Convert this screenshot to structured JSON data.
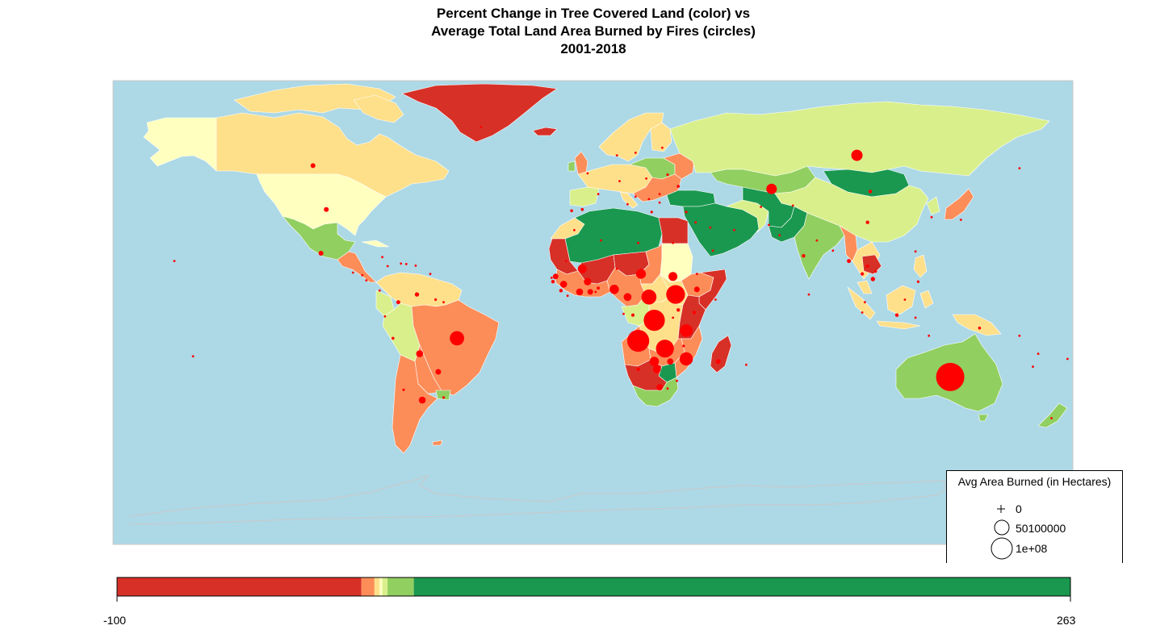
{
  "title": {
    "line1": "Percent Change in Tree Covered Land (color) vs",
    "line2": "Average Total Land Area Burned by Fires (circles)",
    "line3": "2001-2018"
  },
  "colors": {
    "ocean": "#add8e6",
    "dark_red": "#d73027",
    "orange": "#fc8d59",
    "light_orange": "#fee08b",
    "pale_yellow": "#ffffbf",
    "yellow_green": "#d9ef8b",
    "light_green": "#91cf60",
    "dark_green": "#1a9850",
    "fire": "#ff0000"
  },
  "legend": {
    "title": "Avg Area Burned (in Hectares)",
    "items": [
      {
        "label": "0",
        "symbol": "plus"
      },
      {
        "label": "50100000",
        "symbol": "circle-small"
      },
      {
        "label": "1e+08",
        "symbol": "circle-large"
      }
    ]
  },
  "color_scale": {
    "min_label": "-100",
    "max_label": "263",
    "min": -100,
    "max": 263,
    "segments": [
      {
        "from": -100,
        "to": -7,
        "color": "#d73027"
      },
      {
        "from": -7,
        "to": -2,
        "color": "#fc8d59"
      },
      {
        "from": -2,
        "to": 0,
        "color": "#fee08b"
      },
      {
        "from": 0,
        "to": 1,
        "color": "#ffffbf"
      },
      {
        "from": 1,
        "to": 3,
        "color": "#d9ef8b"
      },
      {
        "from": 3,
        "to": 13,
        "color": "#91cf60"
      },
      {
        "from": 13,
        "to": 263,
        "color": "#1a9850"
      }
    ]
  },
  "fires": [
    {
      "region": "Australia",
      "lon": 134,
      "lat": -25,
      "hectares": 50000000
    },
    {
      "region": "Central Africa west",
      "lon": 17,
      "lat": -11,
      "hectares": 30000000
    },
    {
      "region": "DR Congo",
      "lon": 23,
      "lat": -3,
      "hectares": 28000000
    },
    {
      "region": "South Sudan",
      "lon": 31,
      "lat": 7,
      "hectares": 22000000
    },
    {
      "region": "Zambia",
      "lon": 27,
      "lat": -14,
      "hectares": 20000000
    },
    {
      "region": "Central African Rep",
      "lon": 21,
      "lat": 6,
      "hectares": 14000000
    },
    {
      "region": "Brazil",
      "lon": -51,
      "lat": -10,
      "hectares": 13000000
    },
    {
      "region": "Mozambique",
      "lon": 35,
      "lat": -18,
      "hectares": 11000000
    },
    {
      "region": "Tanzania",
      "lon": 35,
      "lat": -7,
      "hectares": 10000000
    },
    {
      "region": "Russia",
      "lon": 99,
      "lat": 61,
      "hectares": 8000000
    },
    {
      "region": "Kazakhstan",
      "lon": 67,
      "lat": 48,
      "hectares": 7000000
    },
    {
      "region": "Chad",
      "lon": 18,
      "lat": 15,
      "hectares": 6000000
    },
    {
      "region": "Nigeria",
      "lon": 8,
      "lat": 9,
      "hectares": 5500000
    },
    {
      "region": "Mali",
      "lon": -4,
      "lat": 17,
      "hectares": 5000000
    },
    {
      "region": "Sudan",
      "lon": 30,
      "lat": 14,
      "hectares": 5000000
    },
    {
      "region": "Angola",
      "lon": 23,
      "lat": -19,
      "hectares": 5500000
    },
    {
      "region": "Botswana",
      "lon": 24,
      "lat": -22,
      "hectares": 4000000
    },
    {
      "region": "Cameroon",
      "lon": 13,
      "lat": 6,
      "hectares": 4000000
    },
    {
      "region": "Burkina",
      "lon": -2,
      "lat": 12,
      "hectares": 3500000
    },
    {
      "region": "Ivory Coast",
      "lon": -5,
      "lat": 8,
      "hectares": 3000000
    },
    {
      "region": "Guinea",
      "lon": -11,
      "lat": 11,
      "hectares": 3000000
    },
    {
      "region": "Argentina",
      "lon": -64,
      "lat": -34,
      "hectares": 3000000
    },
    {
      "region": "Bolivia",
      "lon": -65,
      "lat": -16,
      "hectares": 3000000
    },
    {
      "region": "South Africa",
      "lon": 25,
      "lat": -29,
      "hectares": 2500000
    },
    {
      "region": "Zimbabwe",
      "lon": 29,
      "lat": -19,
      "hectares": 2500000
    },
    {
      "region": "Ethiopia",
      "lon": 39,
      "lat": 9,
      "hectares": 2000000
    },
    {
      "region": "Paraguay",
      "lon": -58,
      "lat": -23,
      "hectares": 2000000
    },
    {
      "region": "Senegal",
      "lon": -14,
      "lat": 14,
      "hectares": 2000000
    },
    {
      "region": "Ghana",
      "lon": -1,
      "lat": 8,
      "hectares": 2000000
    },
    {
      "region": "Canada",
      "lon": -105,
      "lat": 57,
      "hectares": 1500000
    },
    {
      "region": "USA",
      "lon": -100,
      "lat": 40,
      "hectares": 1500000
    },
    {
      "region": "Mexico",
      "lon": -102,
      "lat": 23,
      "hectares": 1500000
    },
    {
      "region": "Venezuela",
      "lon": -66,
      "lat": 7,
      "hectares": 1200000
    },
    {
      "region": "Colombia",
      "lon": -73,
      "lat": 4,
      "hectares": 1000000
    },
    {
      "region": "Cambodia",
      "lon": 105,
      "lat": 13,
      "hectares": 1200000
    },
    {
      "region": "Myanmar",
      "lon": 96,
      "lat": 20,
      "hectares": 1000000
    },
    {
      "region": "India",
      "lon": 79,
      "lat": 22,
      "hectares": 800000
    },
    {
      "region": "China",
      "lon": 103,
      "lat": 35,
      "hectares": 800000
    },
    {
      "region": "Indonesia",
      "lon": 114,
      "lat": -1,
      "hectares": 800000
    },
    {
      "region": "Madagascar",
      "lon": 47,
      "lat": -19,
      "hectares": 1500000
    },
    {
      "region": "Uganda",
      "lon": 32,
      "lat": 1,
      "hectares": 800000
    },
    {
      "region": "Kenya",
      "lon": 38,
      "lat": 0,
      "hectares": 800000
    },
    {
      "region": "Namibia",
      "lon": 17,
      "lat": -22,
      "hectares": 800000
    },
    {
      "region": "Mongolia",
      "lon": 104,
      "lat": 47,
      "hectares": 800000
    },
    {
      "region": "Ukraine",
      "lon": 32,
      "lat": 49,
      "hectares": 600000
    },
    {
      "region": "Thailand",
      "lon": 101,
      "lat": 15,
      "hectares": 700000
    },
    {
      "region": "Laos",
      "lon": 103,
      "lat": 18,
      "hectares": 700000
    },
    {
      "region": "Guinea-Bissau",
      "lon": -15,
      "lat": 12,
      "hectares": 800000
    },
    {
      "region": "Sierra Leone",
      "lon": -12,
      "lat": 8.5,
      "hectares": 800000
    },
    {
      "region": "Benin",
      "lon": 2,
      "lat": 9.5,
      "hectares": 600000
    },
    {
      "region": "Congo",
      "lon": 15,
      "lat": -1,
      "hectares": 700000
    },
    {
      "region": "Spain",
      "lon": -4,
      "lat": 40,
      "hectares": 500000
    },
    {
      "region": "Portugal",
      "lon": -8,
      "lat": 39.5,
      "hectares": 500000
    },
    {
      "region": "Greece",
      "lon": 22,
      "lat": 39,
      "hectares": 400000
    },
    {
      "region": "Turkey",
      "lon": 35,
      "lat": 39,
      "hectares": 400000
    },
    {
      "region": "Peru",
      "lon": -75,
      "lat": -10,
      "hectares": 500000
    },
    {
      "region": "Chile",
      "lon": -71,
      "lat": -30,
      "hectares": 400000
    },
    {
      "region": "Uruguay",
      "lon": -56,
      "lat": -33,
      "hectares": 400000
    },
    {
      "region": "Guyana",
      "lon": -59,
      "lat": 5,
      "hectares": 400000
    },
    {
      "region": "Japan",
      "lon": 138,
      "lat": 36,
      "hectares": 300000
    },
    {
      "region": "Philippines",
      "lon": 122,
      "lat": 12,
      "hectares": 400000
    },
    {
      "region": "PNG",
      "lon": 145,
      "lat": -6,
      "hectares": 500000
    },
    {
      "region": "New Zealand",
      "lon": 172,
      "lat": -41,
      "hectares": 300000
    },
    {
      "region": "Iran",
      "lon": 53,
      "lat": 32,
      "hectares": 300000
    },
    {
      "region": "Pakistan",
      "lon": 70,
      "lat": 30,
      "hectares": 300000
    },
    {
      "region": "Afghanistan",
      "lon": 66,
      "lat": 34,
      "hectares": 300000
    },
    {
      "region": "Saudi",
      "lon": 45,
      "lat": 24,
      "hectares": 200000
    },
    {
      "region": "Egypt",
      "lon": 30,
      "lat": 27,
      "hectares": 200000
    },
    {
      "region": "Libya",
      "lon": 17,
      "lat": 27,
      "hectares": 200000
    },
    {
      "region": "Algeria",
      "lon": 3,
      "lat": 28,
      "hectares": 200000
    },
    {
      "region": "Morocco",
      "lon": -7,
      "lat": 32,
      "hectares": 300000
    },
    {
      "region": "Italy",
      "lon": 13,
      "lat": 42,
      "hectares": 300000
    },
    {
      "region": "France",
      "lon": 2,
      "lat": 46,
      "hectares": 300000
    },
    {
      "region": "Germany",
      "lon": 10,
      "lat": 51,
      "hectares": 200000
    },
    {
      "region": "Poland",
      "lon": 20,
      "lat": 52,
      "hectares": 200000
    },
    {
      "region": "Belarus",
      "lon": 28,
      "lat": 53.5,
      "hectares": 400000
    },
    {
      "region": "Romania",
      "lon": 25,
      "lat": 46,
      "hectares": 200000
    },
    {
      "region": "Sweden",
      "lon": 16,
      "lat": 62,
      "hectares": 200000
    },
    {
      "region": "Finland",
      "lon": 26,
      "lat": 64,
      "hectares": 200000
    },
    {
      "region": "Norway",
      "lon": 9,
      "lat": 61,
      "hectares": 200000
    },
    {
      "region": "UK",
      "lon": -2,
      "lat": 54,
      "hectares": 200000
    },
    {
      "region": "Greenland",
      "lon": -42,
      "lat": 72,
      "hectares": 200000
    },
    {
      "region": "Korea",
      "lon": 127,
      "lat": 37,
      "hectares": 200000
    },
    {
      "region": "Vietnam",
      "lon": 106,
      "lat": 16,
      "hectares": 500000
    },
    {
      "region": "Malaysia",
      "lon": 102,
      "lat": 4,
      "hectares": 200000
    },
    {
      "region": "Sri Lanka",
      "lon": 81,
      "lat": 7,
      "hectares": 200000
    },
    {
      "region": "Bangladesh",
      "lon": 90,
      "lat": 24,
      "hectares": 300000
    },
    {
      "region": "Nepal",
      "lon": 84,
      "lat": 28,
      "hectares": 200000
    },
    {
      "region": "Cuba",
      "lon": -79,
      "lat": 21.5,
      "hectares": 200000
    },
    {
      "region": "Haiti",
      "lon": -72,
      "lat": 19,
      "hectares": 150000
    },
    {
      "region": "Jamaica",
      "lon": -77,
      "lat": 18,
      "hectares": 150000
    },
    {
      "region": "Guatemala",
      "lon": -90,
      "lat": 15.5,
      "hectares": 200000
    },
    {
      "region": "Honduras",
      "lon": -86.5,
      "lat": 14.5,
      "hectares": 300000
    },
    {
      "region": "Nicaragua",
      "lon": -85,
      "lat": 12.5,
      "hectares": 200000
    },
    {
      "region": "Panama",
      "lon": -80,
      "lat": 8.5,
      "hectares": 150000
    },
    {
      "region": "Ecuador",
      "lon": -78,
      "lat": -1.5,
      "hectares": 150000
    },
    {
      "region": "Suriname",
      "lon": -56,
      "lat": 4,
      "hectares": 150000
    },
    {
      "region": "Fiji",
      "lon": 178,
      "lat": -18,
      "hectares": 100000
    },
    {
      "region": "Hawaii",
      "lon": -157,
      "lat": 20,
      "hectares": 100000
    },
    {
      "region": "Polynesia",
      "lon": -150,
      "lat": -17,
      "hectares": 100000
    },
    {
      "region": "New Caledonia",
      "lon": 165,
      "lat": -21,
      "hectares": 100000
    },
    {
      "region": "Vanuatu",
      "lon": 167,
      "lat": -16,
      "hectares": 100000
    },
    {
      "region": "Solomon",
      "lon": 160,
      "lat": -9,
      "hectares": 100000
    },
    {
      "region": "Timor",
      "lon": 126,
      "lat": -9,
      "hectares": 100000
    },
    {
      "region": "Sulawesi",
      "lon": 121,
      "lat": -2,
      "hectares": 150000
    },
    {
      "region": "Mauritius",
      "lon": 57.5,
      "lat": -20.3,
      "hectares": 100000
    },
    {
      "region": "Somalia",
      "lon": 46,
      "lat": 5,
      "hectares": 200000
    },
    {
      "region": "Eritrea",
      "lon": 39,
      "lat": 15,
      "hectares": 150000
    },
    {
      "region": "Malawi",
      "lon": 34,
      "lat": -13,
      "hectares": 400000
    },
    {
      "region": "Gabon",
      "lon": 11.5,
      "lat": -0.5,
      "hectares": 200000
    },
    {
      "region": "Togo",
      "lon": 1,
      "lat": 8,
      "hectares": 300000
    },
    {
      "region": "Liberia",
      "lon": -9.5,
      "lat": 6.5,
      "hectares": 200000
    },
    {
      "region": "Gambia",
      "lon": -15.5,
      "lat": 13.5,
      "hectares": 150000
    },
    {
      "region": "Niger",
      "lon": 9,
      "lat": 17,
      "hectares": 200000
    },
    {
      "region": "Mauritania",
      "lon": -10,
      "lat": 20,
      "hectares": 100000
    },
    {
      "region": "Rwanda",
      "lon": 30,
      "lat": -2,
      "hectares": 150000
    },
    {
      "region": "Lesotho",
      "lon": 28,
      "lat": -29.5,
      "hectares": 150000
    },
    {
      "region": "Eswatini",
      "lon": 31.5,
      "lat": -26.5,
      "hectares": 150000
    },
    {
      "region": "Uzbekistan",
      "lon": 63,
      "lat": 41,
      "hectares": 150000
    },
    {
      "region": "Kyrgyz",
      "lon": 75,
      "lat": 41.5,
      "hectares": 150000
    },
    {
      "region": "Iraq",
      "lon": 44,
      "lat": 33,
      "hectares": 150000
    },
    {
      "region": "Syria",
      "lon": 38.5,
      "lat": 35,
      "hectares": 150000
    },
    {
      "region": "Croatia",
      "lon": 16,
      "lat": 45,
      "hectares": 150000
    },
    {
      "region": "Bulgaria",
      "lon": 25,
      "lat": 42.7,
      "hectares": 150000
    },
    {
      "region": "Serbia",
      "lon": 21,
      "lat": 44,
      "hectares": 150000
    },
    {
      "region": "Kamchatka",
      "lon": 160,
      "lat": 56,
      "hectares": 100000
    },
    {
      "region": "Taiwan",
      "lon": 121,
      "lat": 23.7,
      "hectares": 100000
    },
    {
      "region": "Borneo north",
      "lon": 117,
      "lat": 5,
      "hectares": 150000
    },
    {
      "region": "Sumatra",
      "lon": 101,
      "lat": 0,
      "hectares": 300000
    },
    {
      "region": "Caribbean east",
      "lon": -61,
      "lat": 15,
      "hectares": 100000
    },
    {
      "region": "Dominican",
      "lon": -70,
      "lat": 18.8,
      "hectares": 150000
    },
    {
      "region": "Puerto Rico",
      "lon": -66.5,
      "lat": 18.2,
      "hectares": 100000
    }
  ]
}
